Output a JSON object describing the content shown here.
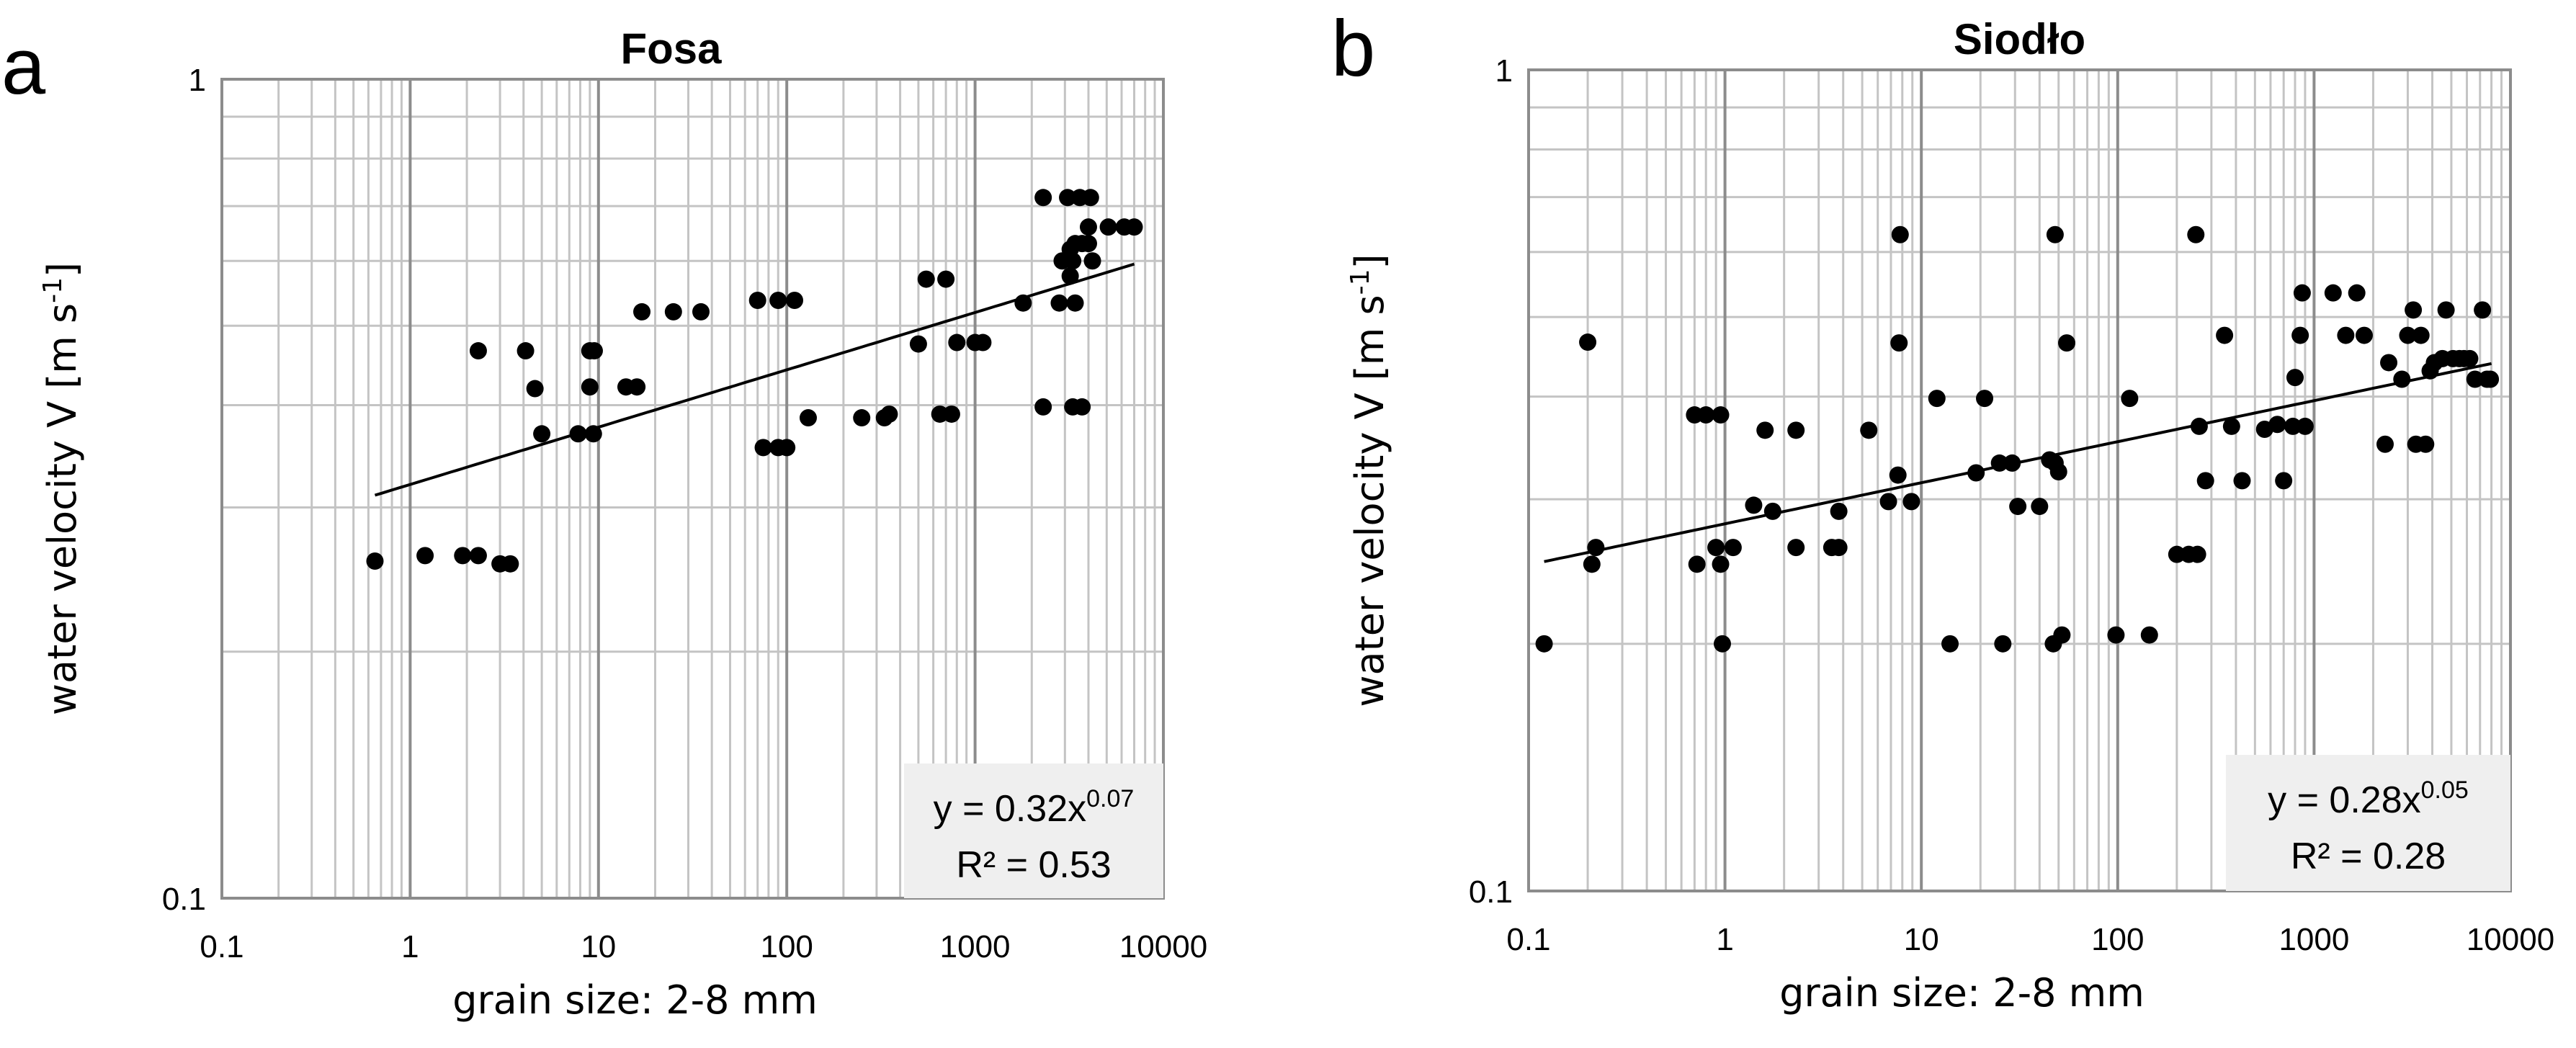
{
  "chart_data": [
    {
      "type": "scatter",
      "panel_label": "a",
      "title": "Fosa",
      "xlabel": "grain size: 2-8 mm",
      "ylabel": "water velocity V [m s",
      "ylabel_sup": "-1",
      "ylabel_close": "]",
      "xscale": "log",
      "yscale": "log",
      "xlim": [
        0.1,
        10000
      ],
      "ylim": [
        0.1,
        1
      ],
      "x_ticks": [
        "0.1",
        "1",
        "10",
        "100",
        "1000",
        "10000"
      ],
      "y_ticks": [
        "0.1",
        "1"
      ],
      "grid": true,
      "trendline": {
        "type": "power",
        "a": 0.32,
        "b": 0.07,
        "x_range": [
          0.65,
          7000
        ]
      },
      "equation": {
        "base": "y = 0.32x",
        "exp": "0.07",
        "r2": "R² = 0.53"
      },
      "points": [
        [
          0.65,
          0.258
        ],
        [
          1.2,
          0.262
        ],
        [
          1.9,
          0.262
        ],
        [
          2.3,
          0.262
        ],
        [
          3,
          0.256
        ],
        [
          3.4,
          0.256
        ],
        [
          2.3,
          0.466
        ],
        [
          4.1,
          0.466
        ],
        [
          4.6,
          0.419
        ],
        [
          5,
          0.369
        ],
        [
          7.8,
          0.369
        ],
        [
          9,
          0.466
        ],
        [
          9.5,
          0.466
        ],
        [
          9,
          0.421
        ],
        [
          9.4,
          0.369
        ],
        [
          14,
          0.421
        ],
        [
          16,
          0.421
        ],
        [
          17,
          0.52
        ],
        [
          25,
          0.52
        ],
        [
          35,
          0.52
        ],
        [
          70,
          0.537
        ],
        [
          90,
          0.537
        ],
        [
          110,
          0.537
        ],
        [
          75,
          0.355
        ],
        [
          90,
          0.355
        ],
        [
          100,
          0.355
        ],
        [
          130,
          0.386
        ],
        [
          250,
          0.386
        ],
        [
          330,
          0.386
        ],
        [
          350,
          0.39
        ],
        [
          500,
          0.475
        ],
        [
          550,
          0.57
        ],
        [
          700,
          0.57
        ],
        [
          650,
          0.39
        ],
        [
          750,
          0.39
        ],
        [
          800,
          0.477
        ],
        [
          1000,
          0.477
        ],
        [
          1100,
          0.477
        ],
        [
          1800,
          0.533
        ],
        [
          2300,
          0.717
        ],
        [
          2300,
          0.398
        ],
        [
          3100,
          0.717
        ],
        [
          3300,
          0.398
        ],
        [
          3700,
          0.398
        ],
        [
          3600,
          0.717
        ],
        [
          4100,
          0.717
        ],
        [
          2900,
          0.6
        ],
        [
          3200,
          0.62
        ],
        [
          3400,
          0.63
        ],
        [
          3700,
          0.63
        ],
        [
          4000,
          0.63
        ],
        [
          3300,
          0.6
        ],
        [
          4200,
          0.6
        ],
        [
          2800,
          0.533
        ],
        [
          3400,
          0.533
        ],
        [
          3200,
          0.575
        ],
        [
          4000,
          0.66
        ],
        [
          5100,
          0.66
        ],
        [
          6200,
          0.66
        ],
        [
          7000,
          0.66
        ]
      ]
    },
    {
      "type": "scatter",
      "panel_label": "b",
      "title": "Siodło",
      "xlabel": "grain size: 2-8 mm",
      "ylabel": "water velocity V [m s",
      "ylabel_sup": "-1",
      "ylabel_close": "]",
      "xscale": "log",
      "yscale": "log",
      "xlim": [
        0.1,
        10000
      ],
      "ylim": [
        0.1,
        1
      ],
      "x_ticks": [
        "0.1",
        "1",
        "10",
        "100",
        "1000",
        "10000"
      ],
      "y_ticks": [
        "0.1",
        "1"
      ],
      "grid": true,
      "trendline": {
        "type": "power",
        "a": 0.28,
        "b": 0.05,
        "x_range": [
          0.12,
          8000
        ]
      },
      "equation": {
        "base": "y = 0.28x",
        "exp": "0.05",
        "r2": "R² = 0.28"
      },
      "points": [
        [
          0.12,
          0.2
        ],
        [
          0.2,
          0.466
        ],
        [
          0.21,
          0.25
        ],
        [
          0.22,
          0.262
        ],
        [
          0.7,
          0.38
        ],
        [
          0.8,
          0.38
        ],
        [
          0.95,
          0.38
        ],
        [
          0.72,
          0.25
        ],
        [
          0.9,
          0.262
        ],
        [
          0.95,
          0.25
        ],
        [
          1.1,
          0.262
        ],
        [
          1.4,
          0.295
        ],
        [
          1.6,
          0.364
        ],
        [
          1.75,
          0.29
        ],
        [
          0.97,
          0.2
        ],
        [
          2.3,
          0.364
        ],
        [
          2.3,
          0.262
        ],
        [
          3.5,
          0.262
        ],
        [
          3.8,
          0.262
        ],
        [
          3.8,
          0.29
        ],
        [
          5.4,
          0.364
        ],
        [
          6.8,
          0.298
        ],
        [
          7.8,
          0.63
        ],
        [
          7.7,
          0.465
        ],
        [
          7.6,
          0.321
        ],
        [
          8.9,
          0.298
        ],
        [
          12,
          0.398
        ],
        [
          14,
          0.2
        ],
        [
          19,
          0.323
        ],
        [
          21,
          0.398
        ],
        [
          25,
          0.332
        ],
        [
          26,
          0.2
        ],
        [
          29,
          0.332
        ],
        [
          31,
          0.294
        ],
        [
          40,
          0.294
        ],
        [
          45,
          0.335
        ],
        [
          48,
          0.332
        ],
        [
          48,
          0.63
        ],
        [
          50,
          0.324
        ],
        [
          47,
          0.2
        ],
        [
          52,
          0.205
        ],
        [
          55,
          0.465
        ],
        [
          98,
          0.205
        ],
        [
          115,
          0.398
        ],
        [
          145,
          0.205
        ],
        [
          200,
          0.257
        ],
        [
          230,
          0.257
        ],
        [
          255,
          0.257
        ],
        [
          250,
          0.63
        ],
        [
          260,
          0.368
        ],
        [
          280,
          0.316
        ],
        [
          350,
          0.475
        ],
        [
          380,
          0.368
        ],
        [
          430,
          0.316
        ],
        [
          560,
          0.365
        ],
        [
          650,
          0.37
        ],
        [
          700,
          0.316
        ],
        [
          780,
          0.368
        ],
        [
          800,
          0.422
        ],
        [
          850,
          0.475
        ],
        [
          870,
          0.535
        ],
        [
          900,
          0.368
        ],
        [
          1250,
          0.535
        ],
        [
          1450,
          0.475
        ],
        [
          1650,
          0.535
        ],
        [
          1800,
          0.475
        ],
        [
          2300,
          0.35
        ],
        [
          2400,
          0.44
        ],
        [
          2800,
          0.42
        ],
        [
          3000,
          0.475
        ],
        [
          3200,
          0.51
        ],
        [
          3300,
          0.35
        ],
        [
          3500,
          0.475
        ],
        [
          3700,
          0.35
        ],
        [
          3900,
          0.43
        ],
        [
          4100,
          0.44
        ],
        [
          4500,
          0.445
        ],
        [
          4700,
          0.51
        ],
        [
          5100,
          0.445
        ],
        [
          5500,
          0.445
        ],
        [
          5800,
          0.445
        ],
        [
          6200,
          0.445
        ],
        [
          6600,
          0.42
        ],
        [
          7200,
          0.51
        ],
        [
          7600,
          0.42
        ],
        [
          7900,
          0.42
        ]
      ]
    }
  ]
}
